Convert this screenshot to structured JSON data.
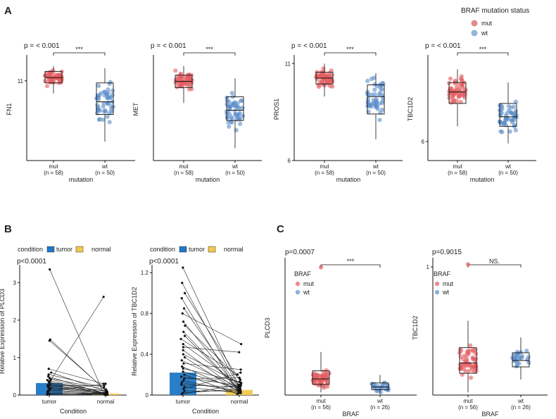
{
  "panel_letters": [
    "A",
    "B",
    "C"
  ],
  "chart_data": [
    {
      "type": "scatter",
      "panel": "A",
      "ylabel": "FN1",
      "xlabel": "mutation",
      "categories": [
        "mut",
        "wt"
      ],
      "category_counts": [
        "(n = 58)",
        "(n = 50)"
      ],
      "pvalue": "p = < 0.001",
      "significance": "***",
      "ylim": [
        7.2,
        12.1
      ],
      "yticks": [
        11
      ],
      "series": [
        {
          "name": "mut",
          "color": "#e35d61",
          "n": 58,
          "median": 11.15,
          "q1": 10.9,
          "q3": 11.45,
          "whisker_low": 10.4,
          "whisker_high": 11.7,
          "spread_low": 9.4,
          "spread_high": 11.7
        },
        {
          "name": "wt",
          "color": "#5b8ec9",
          "n": 50,
          "median": 10.0,
          "q1": 9.4,
          "q3": 10.9,
          "whisker_low": 8.1,
          "whisker_high": 11.6,
          "spread_low": 7.5,
          "spread_high": 11.6
        }
      ]
    },
    {
      "type": "scatter",
      "panel": "A",
      "ylabel": "MET",
      "xlabel": "mutation",
      "categories": [
        "mut",
        "wt"
      ],
      "category_counts": [
        "(n = 58)",
        "(n = 50)"
      ],
      "pvalue": "p = < 0.001",
      "significance": "***",
      "ylim": [
        0,
        10
      ],
      "yticks": [],
      "series": [
        {
          "name": "mut",
          "color": "#e35d61",
          "n": 58,
          "median": 7.7,
          "q1": 7.1,
          "q3": 8.3,
          "whisker_low": 5.6,
          "whisker_high": 9.2,
          "spread_low": 4.5,
          "spread_high": 9.2
        },
        {
          "name": "wt",
          "color": "#5b8ec9",
          "n": 50,
          "median": 4.9,
          "q1": 3.9,
          "q3": 6.2,
          "whisker_low": 1.2,
          "whisker_high": 8.0,
          "spread_low": 0.7,
          "spread_high": 8.3
        }
      ]
    },
    {
      "type": "scatter",
      "panel": "A",
      "ylabel": "PROS1",
      "xlabel": "mutation",
      "categories": [
        "mut",
        "wt"
      ],
      "category_counts": [
        "(n = 58)",
        "(n = 50)"
      ],
      "pvalue": "p = < 0.001",
      "significance": "***",
      "ylim": [
        6,
        11.3
      ],
      "yticks": [
        11,
        6
      ],
      "series": [
        {
          "name": "mut",
          "color": "#e35d61",
          "n": 58,
          "median": 10.25,
          "q1": 9.95,
          "q3": 10.55,
          "whisker_low": 9.3,
          "whisker_high": 11.0,
          "spread_low": 9.0,
          "spread_high": 11.0
        },
        {
          "name": "wt",
          "color": "#5b8ec9",
          "n": 50,
          "median": 9.3,
          "q1": 8.4,
          "q3": 9.9,
          "whisker_low": 7.1,
          "whisker_high": 10.5,
          "spread_low": 6.1,
          "spread_high": 10.5
        }
      ]
    },
    {
      "type": "scatter",
      "panel": "A",
      "ylabel": "TBC1D2",
      "xlabel": "mutation",
      "categories": [
        "mut",
        "wt"
      ],
      "category_counts": [
        "(n = 58)",
        "(n = 50)"
      ],
      "pvalue": "p = < 0.001",
      "significance": "***",
      "ylim": [
        5.0,
        10.4
      ],
      "yticks": [
        6
      ],
      "series": [
        {
          "name": "mut",
          "color": "#e35d61",
          "n": 58,
          "median": 8.6,
          "q1": 8.0,
          "q3": 9.1,
          "whisker_low": 6.8,
          "whisker_high": 9.8,
          "spread_low": 5.6,
          "spread_high": 9.8
        },
        {
          "name": "wt",
          "color": "#5b8ec9",
          "n": 50,
          "median": 7.3,
          "q1": 6.8,
          "q3": 8.0,
          "whisker_low": 5.9,
          "whisker_high": 9.1,
          "spread_low": 5.8,
          "spread_high": 9.3
        }
      ]
    },
    {
      "type": "line",
      "panel": "B",
      "ylabel": "Relative  Expression  of   PLCD3",
      "xlabel": "Condition",
      "categories": [
        "tumor",
        "normal"
      ],
      "legend_title": "condition",
      "legend": [
        "tumor",
        "normal"
      ],
      "legend_colors": [
        "#1f77c4",
        "#f2c94c"
      ],
      "pvalue": "p<0.0001",
      "ylim": [
        0,
        3.4
      ],
      "yticks": [
        0,
        1,
        2,
        3
      ],
      "bar_values": [
        0.32,
        0.04
      ],
      "series": [
        {
          "name": "paired",
          "tumor": [
            3.35,
            1.48,
            1.45,
            0.7,
            0.6,
            0.55,
            0.5,
            0.45,
            0.42,
            0.4,
            0.38,
            0.35,
            0.33,
            0.3,
            0.28,
            0.26,
            0.25,
            0.22,
            0.2,
            0.18,
            0.15,
            0.12,
            0.1,
            0.08,
            0.05,
            0.03,
            0.02,
            0.01
          ],
          "normal": [
            0.05,
            0.08,
            0.12,
            0.3,
            0.1,
            0.2,
            0.02,
            0.15,
            0.04,
            0.01,
            2.62,
            0.05,
            0.1,
            0.03,
            0.01,
            0.25,
            0.06,
            0.02,
            0.12,
            0.04,
            0.01,
            0.03,
            0.3,
            0.02,
            0.05,
            0.01,
            0.02,
            0.04
          ]
        }
      ]
    },
    {
      "type": "line",
      "panel": "B",
      "ylabel": "Relative  Expression  of   TBC1D2",
      "xlabel": "Condition",
      "categories": [
        "tumor",
        "normal"
      ],
      "legend_title": "condition",
      "legend": [
        "tumor",
        "normal"
      ],
      "legend_colors": [
        "#1f77c4",
        "#f2c94c"
      ],
      "pvalue": "p<0.0001",
      "ylim": [
        0,
        1.25
      ],
      "yticks": [
        0.0,
        0.4,
        0.8,
        1.2
      ],
      "bar_values": [
        0.22,
        0.05
      ],
      "series": [
        {
          "name": "paired",
          "tumor": [
            1.25,
            1.1,
            1.0,
            0.95,
            0.85,
            0.8,
            0.72,
            0.68,
            0.62,
            0.58,
            0.55,
            0.5,
            0.47,
            0.44,
            0.4,
            0.37,
            0.34,
            0.31,
            0.28,
            0.26,
            0.23,
            0.2,
            0.18,
            0.16,
            0.14,
            0.12,
            0.1,
            0.08,
            0.06,
            0.04,
            0.02,
            0.01
          ],
          "normal": [
            0.1,
            0.05,
            0.12,
            0.02,
            0.08,
            0.5,
            0.04,
            0.15,
            0.06,
            0.03,
            0.2,
            0.09,
            0.42,
            0.05,
            0.11,
            0.02,
            0.07,
            0.25,
            0.04,
            0.13,
            0.06,
            0.01,
            0.09,
            0.17,
            0.03,
            0.05,
            0.08,
            0.02,
            0.22,
            0.04,
            0.06,
            0.1
          ]
        }
      ]
    },
    {
      "type": "scatter",
      "panel": "C",
      "ylabel": "PLCD3",
      "xlabel": "BRAF",
      "categories": [
        "mut",
        "wt"
      ],
      "category_counts": [
        "(n = 56)",
        "(n = 26)"
      ],
      "pvalue": "p=0.0007",
      "significance": "***",
      "legend_title": "BRAF",
      "ylim": [
        0,
        10
      ],
      "yticks": [],
      "series": [
        {
          "name": "mut",
          "color": "#e35d61",
          "n": 56,
          "median": 1.2,
          "q1": 0.8,
          "q3": 1.8,
          "whisker_low": 0.2,
          "whisker_high": 3.2,
          "spread_low": 0.1,
          "spread_high": 4.2,
          "outliers": [
            9.5
          ]
        },
        {
          "name": "wt",
          "color": "#5b8ec9",
          "n": 26,
          "median": 0.6,
          "q1": 0.4,
          "q3": 0.9,
          "whisker_low": 0.1,
          "whisker_high": 1.5,
          "spread_low": 0.1,
          "spread_high": 2.3
        }
      ]
    },
    {
      "type": "scatter",
      "panel": "C",
      "ylabel": "TBC1D2",
      "xlabel": "BRAF",
      "categories": [
        "mut",
        "wt"
      ],
      "category_counts": [
        "(n = 56)",
        "(n = 26)"
      ],
      "pvalue": "p=0.9015",
      "significance": "NS.",
      "legend_title": "BRAF",
      "ylim": [
        0,
        1.05
      ],
      "yticks": [
        1
      ],
      "series": [
        {
          "name": "mut",
          "color": "#e35d61",
          "n": 56,
          "median": 0.25,
          "q1": 0.17,
          "q3": 0.37,
          "whisker_low": 0.02,
          "whisker_high": 0.58,
          "spread_low": 0.01,
          "spread_high": 0.62,
          "outliers": [
            1.02
          ]
        },
        {
          "name": "wt",
          "color": "#5b8ec9",
          "n": 26,
          "median": 0.27,
          "q1": 0.22,
          "q3": 0.33,
          "whisker_low": 0.12,
          "whisker_high": 0.45,
          "spread_low": 0.08,
          "spread_high": 0.5
        }
      ]
    }
  ],
  "legend_A": {
    "title": "BRAF mutation status",
    "items": [
      {
        "label": "mut",
        "color": "#e38a8c"
      },
      {
        "label": "wt",
        "color": "#93b5d9"
      }
    ]
  }
}
